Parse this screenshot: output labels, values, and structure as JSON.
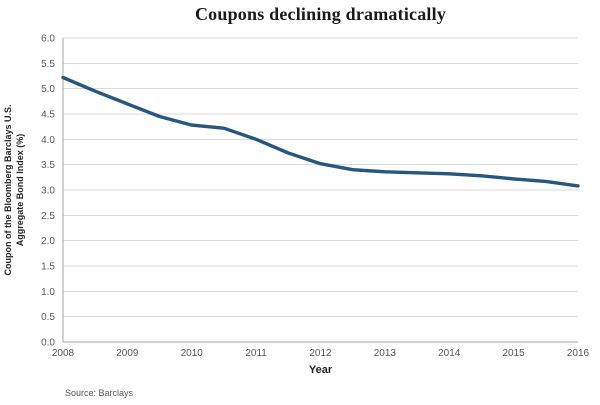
{
  "title": "Coupons declining dramatically",
  "source": "Source: Barclays",
  "chart_data": {
    "type": "line",
    "title": "Coupons declining dramatically",
    "xlabel": "Year",
    "ylabel": "Coupon of the Bloomberg Barclays U.S.\nAggregate Bond Index (%)",
    "x": [
      2008,
      2008.5,
      2009,
      2009.5,
      2010,
      2010.5,
      2011,
      2011.5,
      2012,
      2012.5,
      2013,
      2013.5,
      2014,
      2014.5,
      2015,
      2015.5,
      2016
    ],
    "values": [
      5.22,
      4.95,
      4.7,
      4.45,
      4.28,
      4.22,
      4.0,
      3.73,
      3.52,
      3.4,
      3.36,
      3.34,
      3.32,
      3.28,
      3.22,
      3.17,
      3.08
    ],
    "xticks": [
      2008,
      2009,
      2010,
      2011,
      2012,
      2013,
      2014,
      2015,
      2016
    ],
    "xlim": [
      2008,
      2016
    ],
    "ylim": [
      0,
      6
    ],
    "ytick_step": 0.5,
    "grid": true,
    "legend": "none",
    "line_color": "#27567f",
    "grid_color": "#d9d9d9",
    "axis_color": "#a6a6a6",
    "tick_label_color": "#595959"
  }
}
